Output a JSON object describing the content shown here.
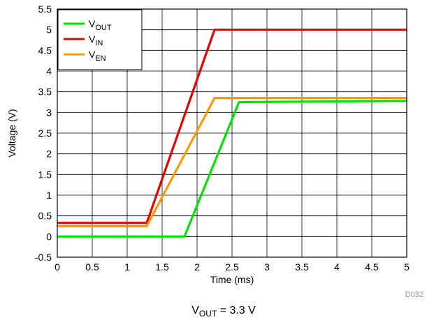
{
  "chart_data": {
    "type": "line",
    "xlabel": "Time (ms)",
    "ylabel": "Voltage (V)",
    "xlim": [
      0,
      5
    ],
    "ylim": [
      -0.5,
      5.5
    ],
    "x_ticks": [
      "0",
      "0.5",
      "1",
      "1.5",
      "2",
      "2.5",
      "3",
      "3.5",
      "4",
      "4.5",
      "5"
    ],
    "y_ticks": [
      "-0.5",
      "0",
      "0.5",
      "1",
      "1.5",
      "2",
      "2.5",
      "3",
      "3.5",
      "4",
      "4.5",
      "5",
      "5.5"
    ],
    "grid": true,
    "legend_position": "top-left",
    "series": [
      {
        "key": "vout",
        "name_main": "V",
        "name_sub": "OUT",
        "color": "#00e000",
        "x": [
          0,
          1.82,
          2.6,
          5
        ],
        "y": [
          0.0,
          0.0,
          3.25,
          3.28
        ]
      },
      {
        "key": "vin",
        "name_main": "V",
        "name_sub": "IN",
        "color": "#e00000",
        "x": [
          0,
          1.28,
          2.25,
          5
        ],
        "y": [
          0.33,
          0.33,
          5.0,
          5.0
        ]
      },
      {
        "key": "ven",
        "name_main": "V",
        "name_sub": "EN",
        "color": "#ff9900",
        "x": [
          0,
          1.28,
          2.25,
          5
        ],
        "y": [
          0.25,
          0.25,
          3.35,
          3.35
        ]
      }
    ]
  },
  "figure_code": "D032",
  "caption": {
    "main": "V",
    "sub": "OUT",
    "rest": " = 3.3 V"
  }
}
